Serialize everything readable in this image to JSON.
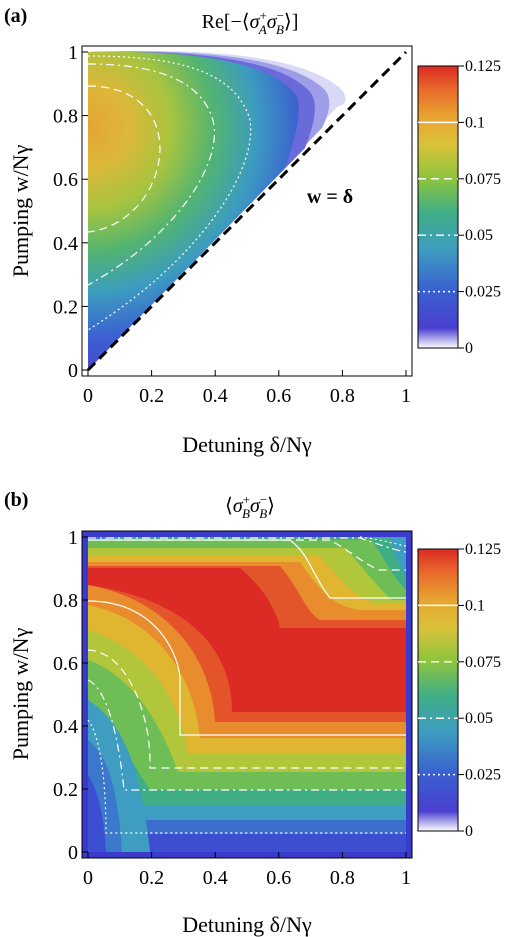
{
  "chart_data": [
    {
      "type": "heatmap",
      "panel_label": "(a)",
      "title": "Re[−⟨σA+σB−⟩]",
      "title_parts": {
        "prefix": "Re[−⟨",
        "s1": "σ",
        "s1_sup": "+",
        "s1_sub": "A",
        "s2": "σ",
        "s2_sup": "−",
        "s2_sub": "B",
        "suffix": "⟩]"
      },
      "xlabel": "Detuning δ/Nγ",
      "ylabel": "Pumping w/Nγ",
      "xlim": [
        0,
        1
      ],
      "ylim": [
        0,
        1
      ],
      "xticks": [
        "0",
        "0.2",
        "0.4",
        "0.6",
        "0.8",
        "1"
      ],
      "yticks": [
        "0",
        "0.2",
        "0.4",
        "0.6",
        "0.8",
        "1"
      ],
      "annotation": "w = δ",
      "boundary_line": "w = δ",
      "contours": [
        0.025,
        0.05,
        0.075,
        0.1
      ],
      "colorbar": {
        "ticks": [
          "0",
          "0.025",
          "0.05",
          "0.075",
          "0.1",
          "0.125"
        ],
        "range": [
          0,
          0.125
        ]
      },
      "peak": {
        "x": 0,
        "y": 0.7,
        "value": 0.082
      }
    },
    {
      "type": "heatmap",
      "panel_label": "(b)",
      "title": "⟨σB+σB−⟩",
      "title_parts": {
        "prefix": "⟨",
        "s1": "σ",
        "s1_sup": "+",
        "s1_sub": "B",
        "s2": "σ",
        "s2_sup": "−",
        "s2_sub": "B",
        "suffix": "⟩"
      },
      "xlabel": "Detuning δ/Nγ",
      "ylabel": "Pumping w/Nγ",
      "xlim": [
        0,
        1
      ],
      "ylim": [
        0,
        1
      ],
      "xticks": [
        "0",
        "0.2",
        "0.4",
        "0.6",
        "0.8",
        "1"
      ],
      "yticks": [
        "0",
        "0.2",
        "0.4",
        "0.6",
        "0.8",
        "1"
      ],
      "contours": [
        0.025,
        0.05,
        0.075,
        0.1
      ],
      "colorbar": {
        "ticks": [
          "0",
          "0.025",
          "0.05",
          "0.075",
          "0.1",
          "0.125"
        ],
        "range": [
          0,
          0.125
        ]
      },
      "plateau_value": 0.125
    }
  ],
  "colors": {
    "scale": [
      "#ffffff",
      "#3a3acb",
      "#3d8ec8",
      "#3aaa8c",
      "#8cc43e",
      "#e3b52f",
      "#ea7a2c",
      "#dd2b25"
    ],
    "contour": "#ffffff",
    "boundary": "#000000"
  }
}
